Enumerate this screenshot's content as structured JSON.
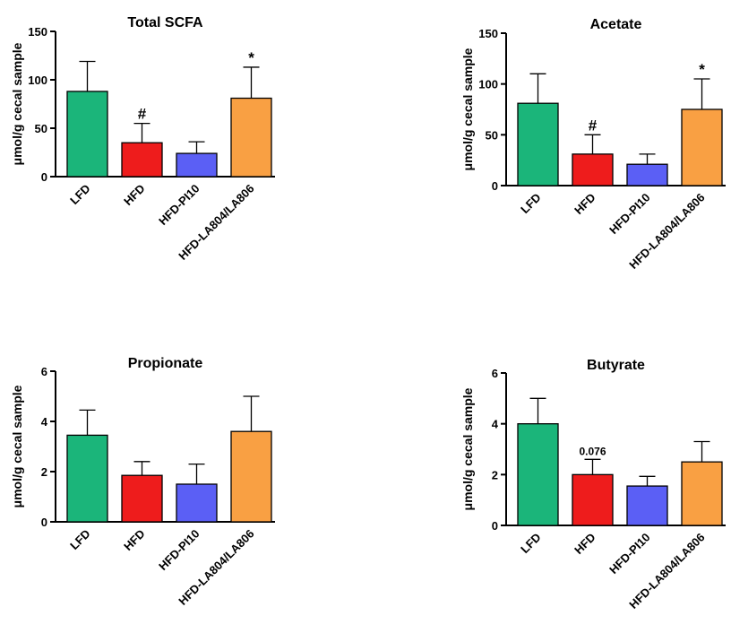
{
  "colors": {
    "LFD": "#1bb57a",
    "HFD": "#ee1c1c",
    "HFD-PI10": "#5b5ff5",
    "HFD-LA804/LA806": "#f9a043",
    "axis": "#000000"
  },
  "chart_data": [
    {
      "type": "bar",
      "title": "Total SCFA",
      "ylabel": "μmol/g cecal sample",
      "categories": [
        "LFD",
        "HFD",
        "HFD-PI10",
        "HFD-LA804/LA806"
      ],
      "values": [
        88,
        35,
        24,
        81
      ],
      "errors": [
        31,
        20,
        12,
        32
      ],
      "annotations": [
        "",
        "#",
        "",
        "*"
      ],
      "ylim": [
        0,
        150
      ],
      "yticks": [
        "0",
        "50",
        "100",
        "150"
      ]
    },
    {
      "type": "bar",
      "title": "Acetate",
      "ylabel": "μmol/g cecal sample",
      "categories": [
        "LFD",
        "HFD",
        "HFD-PI10",
        "HFD-LA804/LA806"
      ],
      "values": [
        81,
        31,
        21,
        75
      ],
      "errors": [
        29,
        19,
        10,
        30
      ],
      "annotations": [
        "",
        "#",
        "",
        "*"
      ],
      "ylim": [
        0,
        150
      ],
      "yticks": [
        "0",
        "50",
        "100",
        "150"
      ]
    },
    {
      "type": "bar",
      "title": "Propionate",
      "ylabel": "μmol/g cecal sample",
      "categories": [
        "LFD",
        "HFD",
        "HFD-PI10",
        "HFD-LA804/LA806"
      ],
      "values": [
        3.45,
        1.85,
        1.5,
        3.6
      ],
      "errors": [
        1.0,
        0.55,
        0.8,
        1.4
      ],
      "annotations": [
        "",
        "",
        "",
        ""
      ],
      "ylim": [
        0,
        6
      ],
      "yticks": [
        "0",
        "2",
        "4",
        "6"
      ]
    },
    {
      "type": "bar",
      "title": "Butyrate",
      "ylabel": "μmol/g  cecal sample",
      "categories": [
        "LFD",
        "HFD",
        "HFD-PI10",
        "HFD-LA804/LA806"
      ],
      "values": [
        4.0,
        2.0,
        1.55,
        2.5
      ],
      "errors": [
        1.0,
        0.6,
        0.38,
        0.8
      ],
      "annotations": [
        "",
        "0.076",
        "",
        ""
      ],
      "ylim": [
        0,
        6
      ],
      "yticks": [
        "0",
        "2",
        "4",
        "6"
      ]
    }
  ]
}
